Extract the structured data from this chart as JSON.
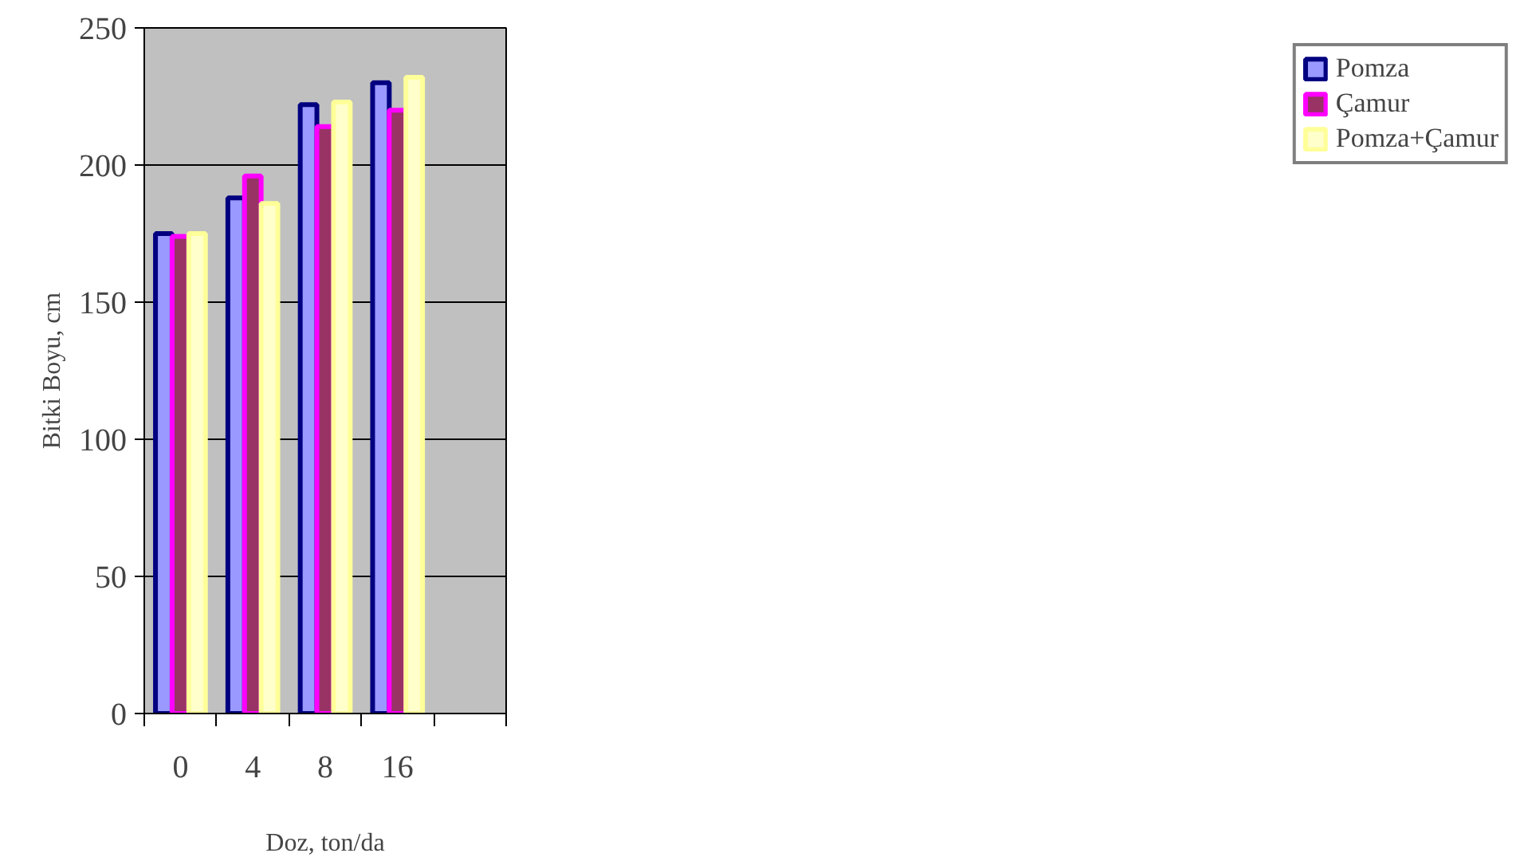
{
  "chart_data": {
    "type": "bar",
    "xlabel": "Doz, ton/da",
    "ylabel": "Bitki Boyu, cm",
    "categories": [
      "0",
      "4",
      "8",
      "16",
      null
    ],
    "series": [
      {
        "name": "Pomza",
        "color": "#9999ff",
        "values": [
          175,
          188,
          222,
          230,
          null
        ]
      },
      {
        "name": "Çamur",
        "color": "#993366",
        "values": [
          174,
          196,
          214,
          220,
          null
        ]
      },
      {
        "name": "Pomza+Çamur",
        "color": "#ffffcc",
        "values": [
          175,
          186,
          223,
          232,
          null
        ]
      }
    ],
    "ylim": [
      0,
      250
    ],
    "yticks": [
      0,
      50,
      100,
      150,
      200,
      250
    ],
    "grid": "y",
    "legend": "right"
  }
}
